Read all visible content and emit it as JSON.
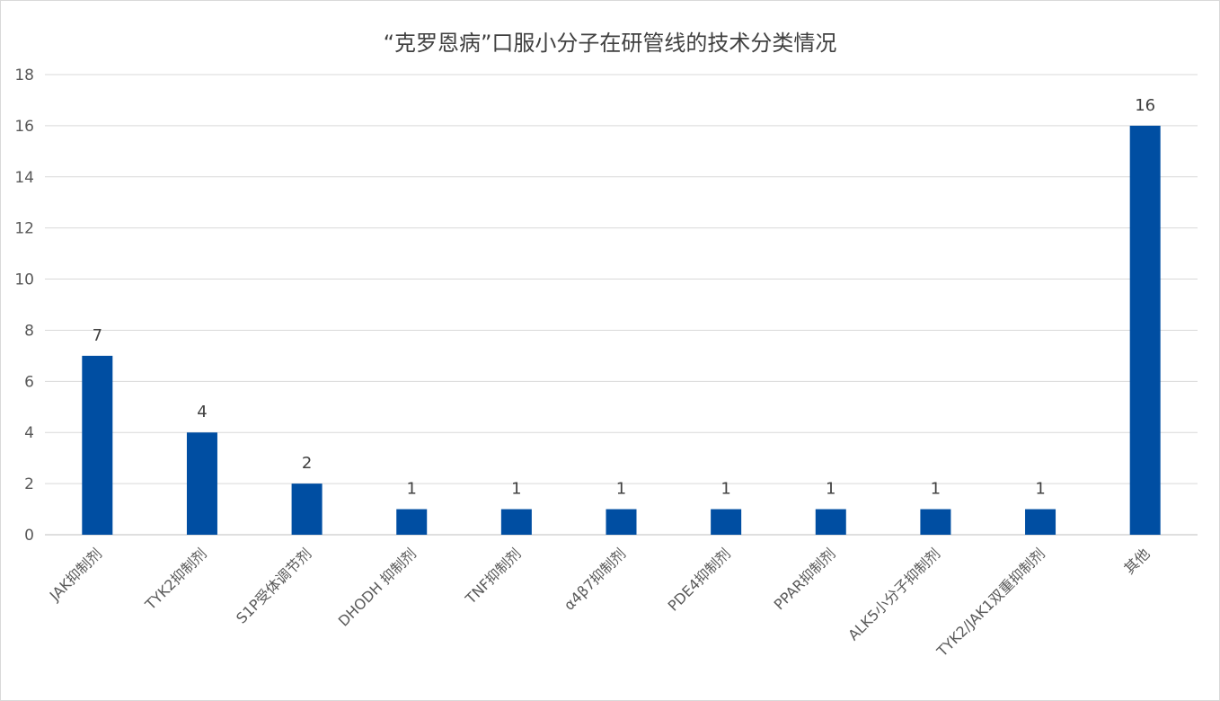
{
  "chart_data": {
    "type": "bar",
    "title": "“克罗恩病”口服小分子在研管线的技术分类情况",
    "xlabel": "",
    "ylabel": "",
    "ylim": [
      0,
      18
    ],
    "yticks": [
      0,
      2,
      4,
      6,
      8,
      10,
      12,
      14,
      16,
      18
    ],
    "categories": [
      "JAK抑制剂",
      "TYK2抑制剂",
      "S1P受体调节剂",
      "DHODH 抑制剂",
      "TNF抑制剂",
      "α4β7抑制剂",
      "PDE4抑制剂",
      "PPAR抑制剂",
      "ALK5小分子抑制剂",
      "TYK2/JAK1双重抑制剂",
      "其他"
    ],
    "values": [
      7,
      4,
      2,
      1,
      1,
      1,
      1,
      1,
      1,
      1,
      16
    ],
    "bar_color": "#004EA2",
    "grid": true,
    "legend": "none"
  }
}
